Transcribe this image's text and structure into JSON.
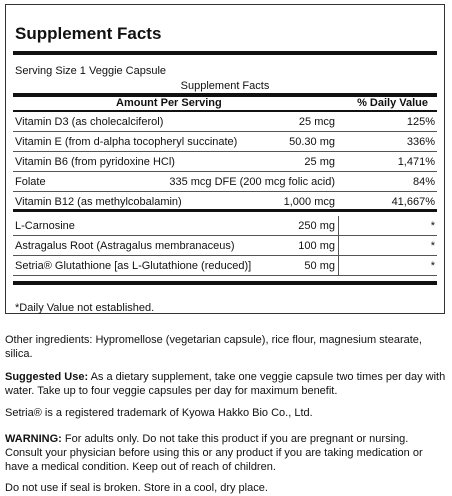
{
  "title": "Supplement Facts",
  "serving_size": "Serving Size 1 Veggie Capsule",
  "table_caption": "Supplement Facts",
  "header": {
    "amount": "Amount Per Serving",
    "dv": "% Daily Value"
  },
  "rows": [
    {
      "name": "Vitamin D3 (as cholecalciferol)",
      "amount": "25 mcg",
      "dv": "125%"
    },
    {
      "name": "Vitamin E (from d-alpha tocopheryl succinate)",
      "amount": "50.30 mg",
      "dv": "336%"
    },
    {
      "name": "Vitamin B6 (from pyridoxine HCl)",
      "amount": "25 mg",
      "dv": "1,471%"
    },
    {
      "name": "Folate",
      "amount": "335 mcg DFE (200 mcg folic acid)",
      "dv": "84%"
    },
    {
      "name": "Vitamin B12 (as methylcobalamin)",
      "amount": "1,000 mcg",
      "dv": "41,667%"
    },
    {
      "name": "L-Carnosine",
      "amount": "250 mg",
      "dv": "*"
    },
    {
      "name": "Astragalus Root (Astragalus membranaceus)",
      "amount": "100 mg",
      "dv": "*"
    },
    {
      "name": "Setria® Glutathione [as L-Glutathione (reduced)]",
      "amount": "50 mg",
      "dv": "*"
    }
  ],
  "footnote": "*Daily Value not established.",
  "other_ingredients": "Other ingredients: Hypromellose (vegetarian capsule), rice flour, magnesium stearate, silica.",
  "suggested_use_label": "Suggested Use:",
  "suggested_use_text": " As a dietary supplement, take one veggie capsule two times per day with water. Take up to four veggie capsules per day for maximum benefit.",
  "trademark": "Setria® is a registered trademark of Kyowa Hakko Bio Co., Ltd.",
  "warning_label": "WARNING:",
  "warning_text": " For adults only. Do not take this product if you are pregnant or nursing. Consult your physician before using this or any product if you are taking medication or have a medical condition. Keep out of reach of children.",
  "storage": "Do not use if seal is broken. Store in a cool, dry place."
}
